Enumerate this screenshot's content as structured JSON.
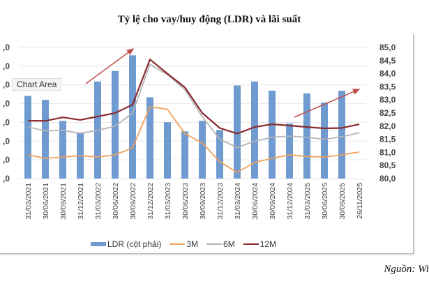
{
  "chart_data": {
    "type": "bar+line",
    "title": "Tỷ lệ cho vay/huy động (LDR) và lãi suất",
    "categories": [
      "31/03/2021",
      "30/06/2021",
      "30/09/2021",
      "31/12/2021",
      "31/03/2022",
      "30/06/2022",
      "30/09/2022",
      "31/12/2022",
      "31/03/2023",
      "30/06/2023",
      "30/09/2023",
      "31/12/2023",
      "31/03/2024",
      "30/06/2024",
      "30/09/2024",
      "31/12/2024",
      "31/03/2025",
      "30/06/2025",
      "30/09/2025",
      "26/11/2025"
    ],
    "left_axis": {
      "ylim": [
        0,
        7
      ],
      "tick_values": [
        0,
        1,
        2,
        3,
        4,
        5,
        6,
        7
      ],
      "tick_labels": [
        ",0",
        ",0",
        ",0",
        ",0",
        ",0",
        ",0",
        ",0",
        ",0"
      ]
    },
    "right_axis": {
      "ylim": [
        80,
        85
      ],
      "tick_labels": [
        "80,0",
        "80,5",
        "81,0",
        "81,5",
        "82,0",
        "82,5",
        "83,0",
        "83,5",
        "84,0",
        "84,5",
        "85,0"
      ]
    },
    "grid": true,
    "legend_placement": "bottom",
    "series": [
      {
        "name": "LDR (cột phải)",
        "type": "bar",
        "axis": "right",
        "color": "#6f9bd1",
        "values": [
          83.15,
          83.0,
          82.2,
          81.75,
          83.7,
          84.1,
          84.7,
          83.1,
          82.15,
          81.8,
          82.2,
          81.85,
          83.55,
          83.7,
          83.35,
          82.1,
          83.25,
          82.9,
          83.35,
          null
        ]
      },
      {
        "name": "3M",
        "type": "line",
        "axis": "left",
        "color": "#f0a05a",
        "values": [
          1.27,
          1.08,
          1.15,
          1.23,
          1.15,
          1.27,
          1.64,
          3.83,
          3.7,
          2.4,
          1.9,
          0.9,
          0.33,
          0.86,
          1.08,
          1.27,
          1.18,
          1.15,
          1.27,
          1.42
        ]
      },
      {
        "name": "6M",
        "type": "line",
        "axis": "left",
        "color": "#b4b4b4",
        "values": [
          2.75,
          2.55,
          2.57,
          2.42,
          2.57,
          2.8,
          3.5,
          6.1,
          5.55,
          4.75,
          3.3,
          2.1,
          1.65,
          2.0,
          2.2,
          2.27,
          2.2,
          2.1,
          2.23,
          2.45
        ]
      },
      {
        "name": "12M",
        "type": "line",
        "axis": "left",
        "color": "#8b2a2e",
        "values": [
          3.09,
          3.08,
          3.27,
          3.13,
          3.31,
          3.5,
          3.94,
          6.36,
          5.6,
          4.87,
          3.5,
          2.7,
          2.4,
          2.75,
          2.9,
          2.83,
          2.75,
          2.68,
          2.7,
          2.9
        ]
      }
    ],
    "annotations": [
      {
        "type": "arrow",
        "color": "#c0504d",
        "from_category": "31/03/2022",
        "to_category": "30/09/2022",
        "direction": "up"
      },
      {
        "type": "arrow",
        "color": "#c0504d",
        "from_category": "31/12/2024",
        "to_category": "26/11/2025",
        "direction": "up"
      }
    ]
  },
  "tooltip": "Chart Area",
  "legend": [
    "LDR (cột phải)",
    "3M",
    "6M",
    "12M"
  ],
  "source": "Nguồn: Wi"
}
